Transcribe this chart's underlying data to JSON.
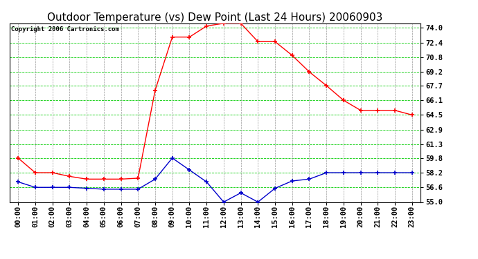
{
  "title": "Outdoor Temperature (vs) Dew Point (Last 24 Hours) 20060903",
  "copyright": "Copyright 2006 Cartronics.com",
  "x_labels": [
    "00:00",
    "01:00",
    "02:00",
    "03:00",
    "04:00",
    "05:00",
    "06:00",
    "07:00",
    "08:00",
    "09:00",
    "10:00",
    "11:00",
    "12:00",
    "13:00",
    "14:00",
    "15:00",
    "16:00",
    "17:00",
    "18:00",
    "19:00",
    "20:00",
    "21:00",
    "22:00",
    "23:00"
  ],
  "temp_data": [
    59.8,
    58.2,
    58.2,
    57.8,
    57.5,
    57.5,
    57.5,
    57.6,
    67.2,
    73.0,
    73.0,
    74.2,
    74.5,
    74.5,
    72.5,
    72.5,
    71.0,
    69.2,
    67.7,
    66.1,
    65.0,
    65.0,
    65.0,
    64.5
  ],
  "dew_data": [
    57.2,
    56.6,
    56.6,
    56.6,
    56.5,
    56.4,
    56.4,
    56.4,
    57.5,
    59.8,
    58.5,
    57.2,
    55.0,
    56.0,
    55.0,
    56.5,
    57.3,
    57.5,
    58.2,
    58.2,
    58.2,
    58.2,
    58.2,
    58.2
  ],
  "temp_color": "#ff0000",
  "dew_color": "#0000cc",
  "bg_color": "#ffffff",
  "plot_bg_color": "#ffffff",
  "grid_color_h": "#00cc00",
  "grid_color_v": "#999999",
  "yticks": [
    55.0,
    56.6,
    58.2,
    59.8,
    61.3,
    62.9,
    64.5,
    66.1,
    67.7,
    69.2,
    70.8,
    72.4,
    74.0
  ],
  "ymin": 55.0,
  "ymax": 74.5,
  "title_fontsize": 11,
  "tick_fontsize": 7.5,
  "copyright_fontsize": 6.5
}
